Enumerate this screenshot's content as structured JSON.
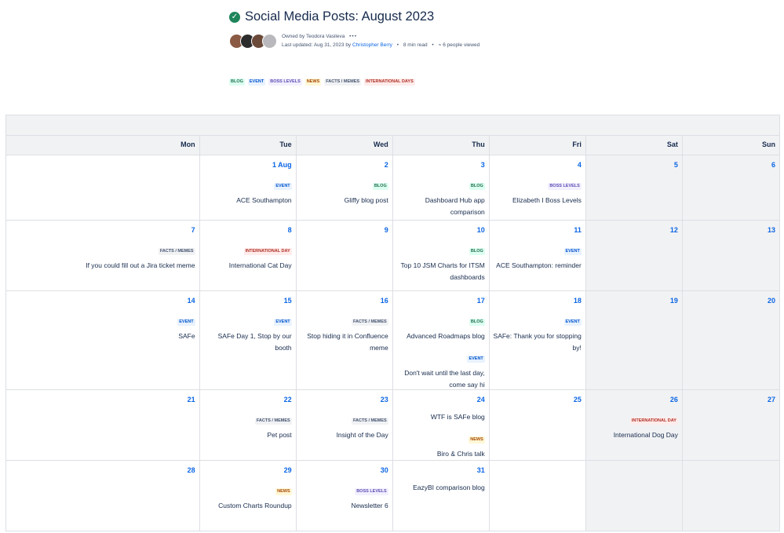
{
  "page": {
    "title": "Social Media Posts: August 2023",
    "owned_by": "Owned by Teodora Vasileva",
    "last_updated_prefix": "Last updated: Aug 31, 2023 by ",
    "last_updated_author": "Christopher Berry",
    "read_time": "8 min read",
    "viewers": "6 people viewed"
  },
  "legend": [
    "BLOG",
    "EVENT",
    "BOSS LEVELS",
    "NEWS",
    "FACTS / MEMES",
    "INTERNATIONAL DAYS"
  ],
  "calendar": {
    "weekdays": [
      "Mon",
      "Tue",
      "Wed",
      "Thu",
      "Fri",
      "Sat",
      "Sun"
    ],
    "weeks": [
      [
        {
          "day": "",
          "items": []
        },
        {
          "day": "1 Aug",
          "items": [
            {
              "tag": "EVENT",
              "cls": "event",
              "text": "ACE Southampton"
            }
          ]
        },
        {
          "day": "2",
          "items": [
            {
              "tag": "BLOG",
              "cls": "blog",
              "text": "Gliffy blog post"
            }
          ]
        },
        {
          "day": "3",
          "items": [
            {
              "tag": "BLOG",
              "cls": "blog",
              "text": "Dashboard Hub app comparison"
            }
          ]
        },
        {
          "day": "4",
          "items": [
            {
              "tag": "BOSS LEVELS",
              "cls": "boss",
              "text": "Elizabeth I Boss Levels"
            }
          ]
        },
        {
          "day": "5",
          "items": []
        },
        {
          "day": "6",
          "items": []
        }
      ],
      [
        {
          "day": "7",
          "items": [
            {
              "tag": "FACTS / MEMES",
              "cls": "facts",
              "text": "If you could fill out a Jira ticket meme"
            }
          ]
        },
        {
          "day": "8",
          "items": [
            {
              "tag": "INTERNATIONAL DAY",
              "cls": "intl",
              "text": "International Cat Day"
            }
          ]
        },
        {
          "day": "9",
          "items": []
        },
        {
          "day": "10",
          "items": [
            {
              "tag": "BLOG",
              "cls": "blog",
              "text": "Top 10 JSM Charts for ITSM dashboards"
            }
          ]
        },
        {
          "day": "11",
          "items": [
            {
              "tag": "EVENT",
              "cls": "event",
              "text": "ACE Southampton: reminder"
            }
          ]
        },
        {
          "day": "12",
          "items": []
        },
        {
          "day": "13",
          "items": []
        }
      ],
      [
        {
          "day": "14",
          "items": [
            {
              "tag": "EVENT",
              "cls": "event",
              "text": "SAFe"
            }
          ]
        },
        {
          "day": "15",
          "items": [
            {
              "tag": "EVENT",
              "cls": "event",
              "text": "SAFe Day 1, Stop by our booth"
            }
          ]
        },
        {
          "day": "16",
          "items": [
            {
              "tag": "FACTS / MEMES",
              "cls": "facts",
              "text": "Stop hiding it in Confluence meme"
            }
          ]
        },
        {
          "day": "17",
          "items": [
            {
              "tag": "BLOG",
              "cls": "blog",
              "text": "Advanced Roadmaps blog"
            },
            {
              "tag": "EVENT",
              "cls": "event",
              "text": "Don't wait until the last day, come say hi"
            }
          ]
        },
        {
          "day": "18",
          "items": [
            {
              "tag": "EVENT",
              "cls": "event",
              "text": "SAFe: Thank you for stopping by!"
            }
          ]
        },
        {
          "day": "19",
          "items": []
        },
        {
          "day": "20",
          "items": []
        }
      ],
      [
        {
          "day": "21",
          "items": []
        },
        {
          "day": "22",
          "items": [
            {
              "tag": "FACTS / MEMES",
              "cls": "facts",
              "text": "Pet post"
            }
          ]
        },
        {
          "day": "23",
          "items": [
            {
              "tag": "FACTS / MEMES",
              "cls": "facts",
              "text": "Insight of the Day"
            }
          ]
        },
        {
          "day": "24",
          "items": [
            {
              "tag": "",
              "cls": "",
              "text": "WTF is SAFe blog"
            },
            {
              "tag": "NEWS",
              "cls": "news",
              "text": "Biro & Chris talk"
            }
          ]
        },
        {
          "day": "25",
          "items": []
        },
        {
          "day": "26",
          "items": [
            {
              "tag": "INTERNATIONAL DAY",
              "cls": "intl",
              "text": "International Dog Day"
            }
          ]
        },
        {
          "day": "27",
          "items": []
        }
      ],
      [
        {
          "day": "28",
          "items": []
        },
        {
          "day": "29",
          "items": [
            {
              "tag": "NEWS",
              "cls": "news",
              "text": "Custom Charts Roundup"
            }
          ]
        },
        {
          "day": "30",
          "items": [
            {
              "tag": "BOSS LEVELS",
              "cls": "boss",
              "text": "Newsletter 6"
            }
          ]
        },
        {
          "day": "31",
          "items": [
            {
              "tag": "",
              "cls": "",
              "text": "EazyBI comparison blog"
            }
          ]
        },
        {
          "day": "",
          "items": []
        },
        {
          "day": "",
          "items": []
        },
        {
          "day": "",
          "items": []
        }
      ]
    ]
  },
  "colors": {
    "accent": "#0c66e4",
    "check": "#1f845a"
  }
}
